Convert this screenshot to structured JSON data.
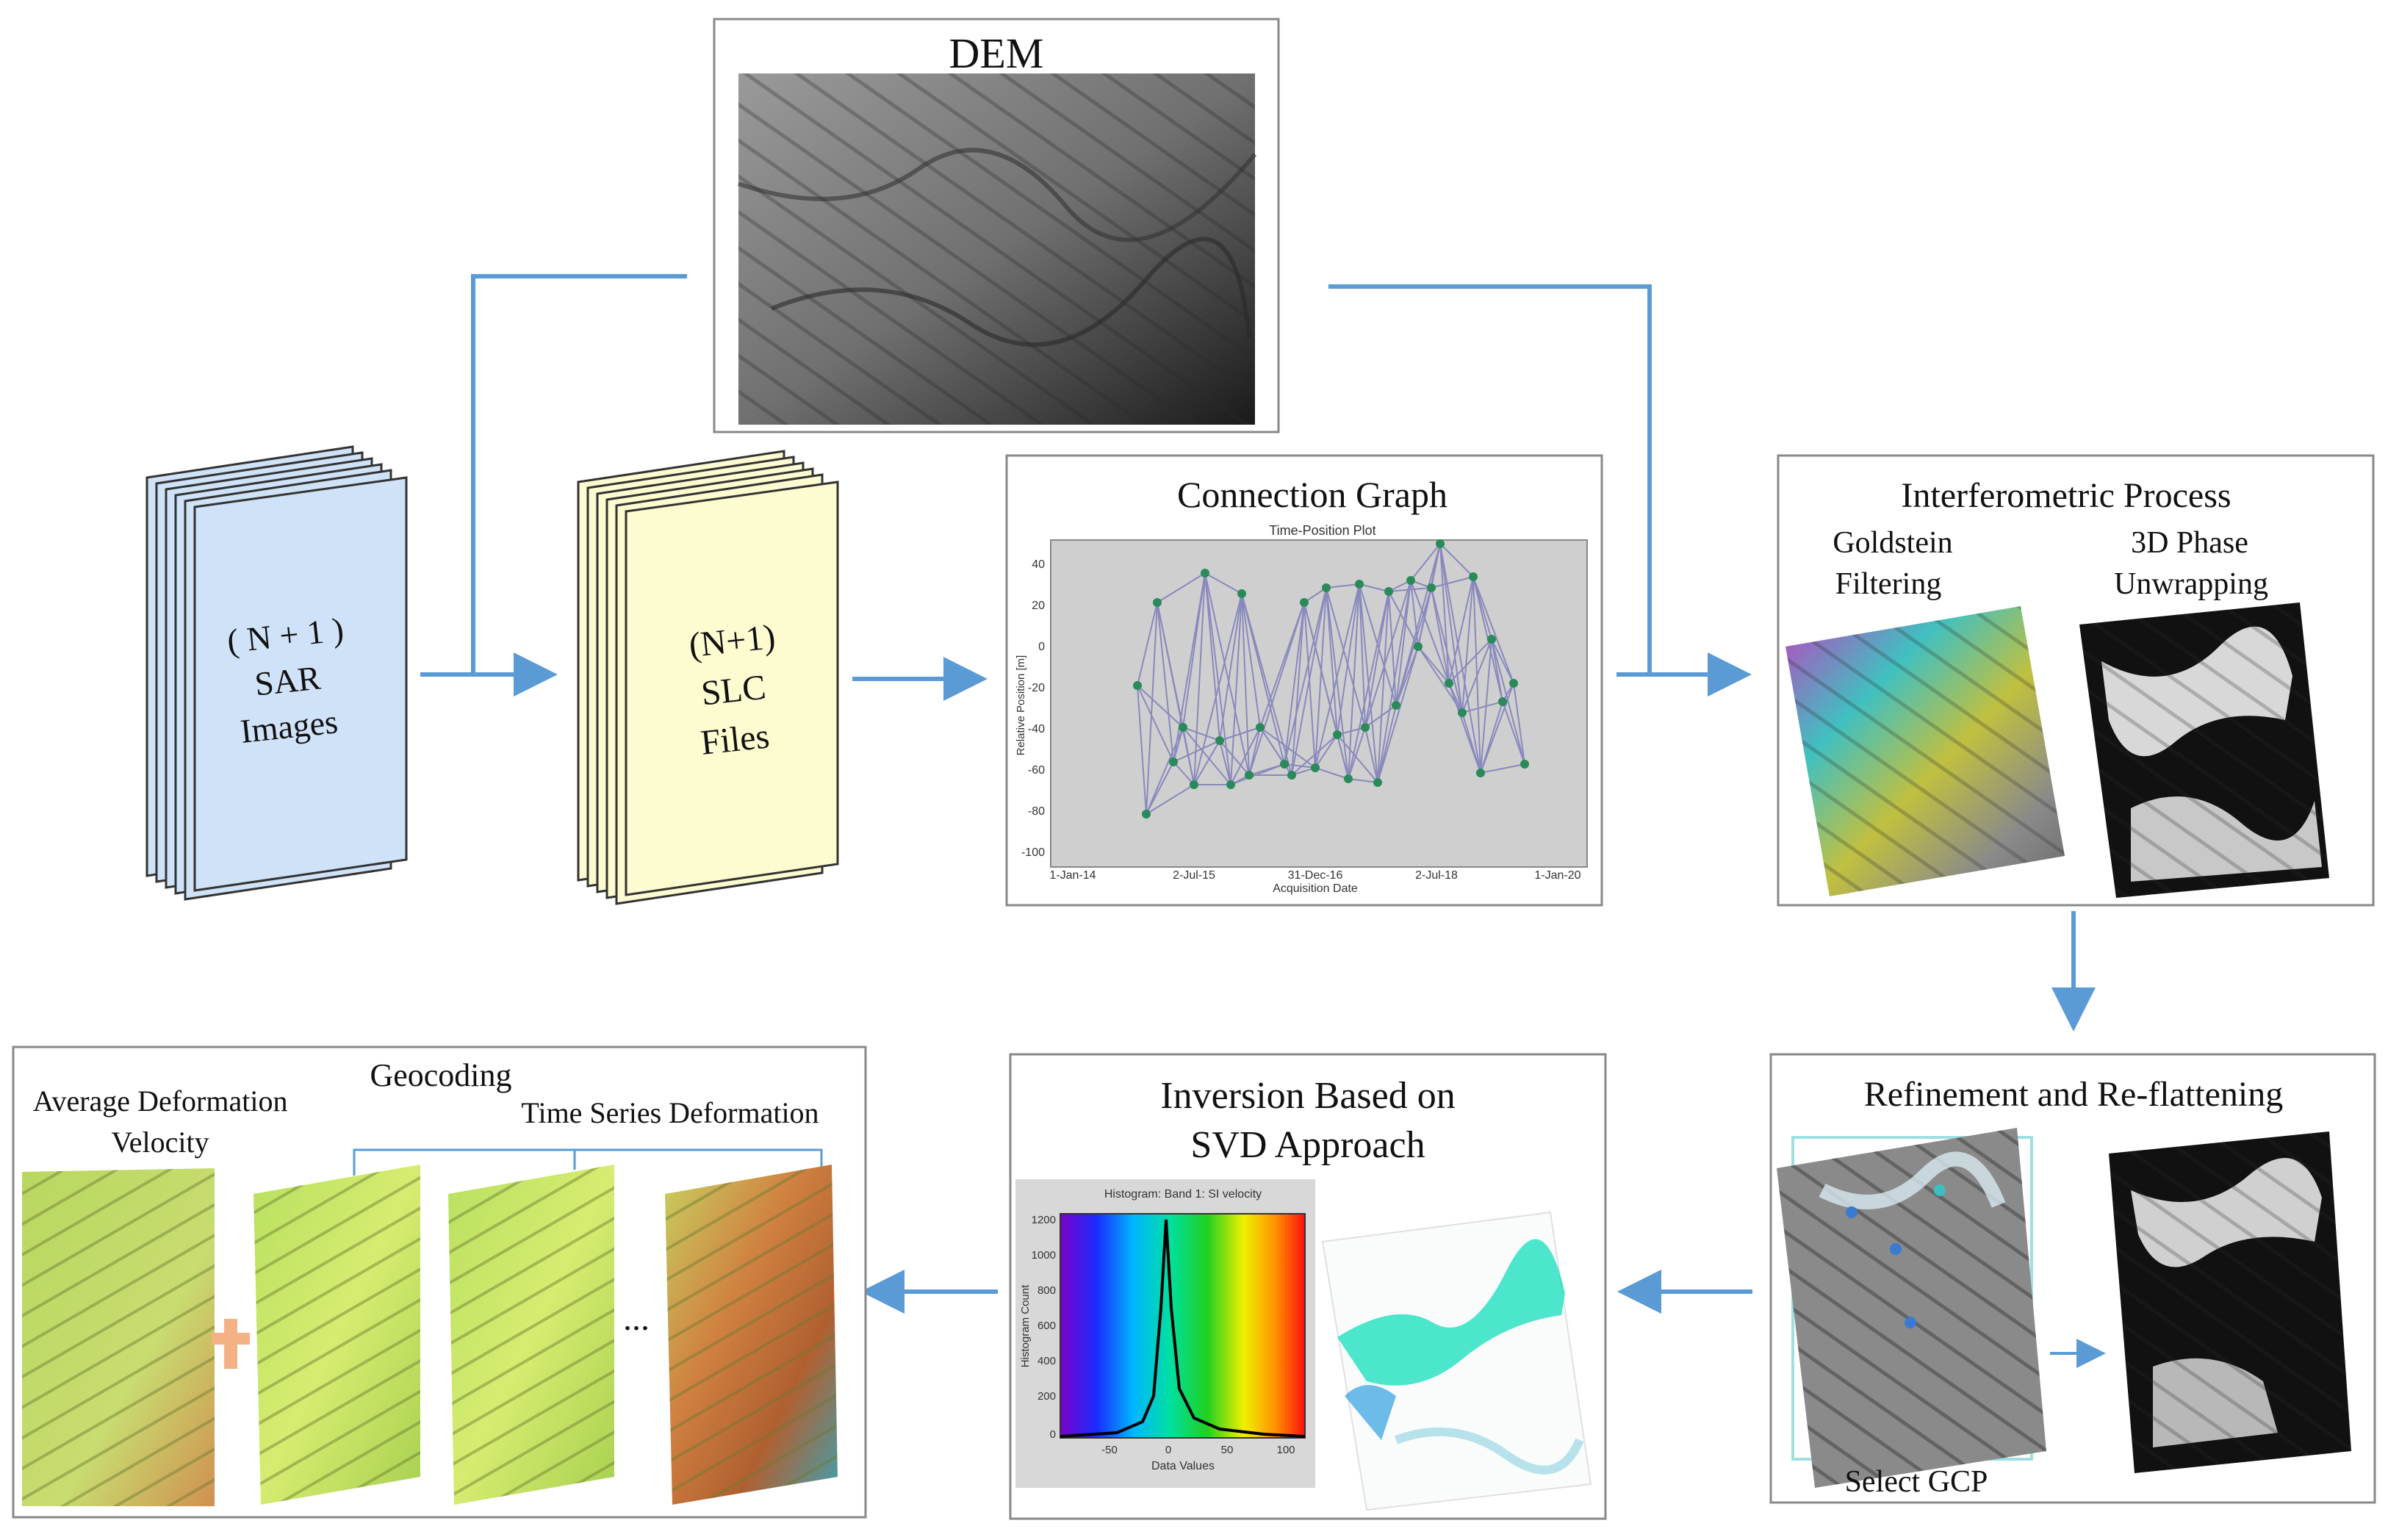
{
  "dem": {
    "title": "DEM"
  },
  "sar": {
    "line1": "( N + 1 )",
    "line2": "SAR",
    "line3": "Images"
  },
  "slc": {
    "line1": "(N+1)",
    "line2": "SLC",
    "line3": "Files"
  },
  "connection": {
    "title": "Connection Graph",
    "plot_title": "Time-Position Plot",
    "xlabel": "Acquisition Date",
    "ylabel": "Relative Position [m]",
    "yticks": [
      "40",
      "20",
      "0",
      "-20",
      "-40",
      "-60",
      "-80",
      "-100"
    ],
    "xticks": [
      "1-Jan-14",
      "2-Jul-15",
      "31-Dec-16",
      "2-Jul-18",
      "1-Jan-20"
    ]
  },
  "interferometric": {
    "title": "Interferometric Process",
    "left_line1": "Goldstein",
    "left_line2": "Filtering",
    "right_line1": "3D Phase",
    "right_line2": "Unwrapping"
  },
  "refinement": {
    "title": "Refinement and Re-flattening",
    "caption": "Select GCP"
  },
  "inversion": {
    "title_line1": "Inversion  Based on",
    "title_line2": "SVD Approach",
    "hist_title": "Histogram: Band 1: SI velocity",
    "hist_xlabel": "Data Values",
    "hist_ylabel": "Histogram Count",
    "hist_yticks": [
      "1200",
      "1000",
      "800",
      "600",
      "400",
      "200",
      "0"
    ],
    "hist_xticks": [
      "-50",
      "0",
      "50",
      "100"
    ]
  },
  "geocoding": {
    "title": "Geocoding",
    "avg_line1": "Average Deformation",
    "avg_line2": "Velocity",
    "ts_label": "Time Series Deformation",
    "ellipsis": "..."
  },
  "colors": {
    "arrow": "#5b9bd5",
    "sar_fill": "#cfe2f7",
    "slc_fill": "#fdfbd0",
    "plus": "#f4b183"
  }
}
